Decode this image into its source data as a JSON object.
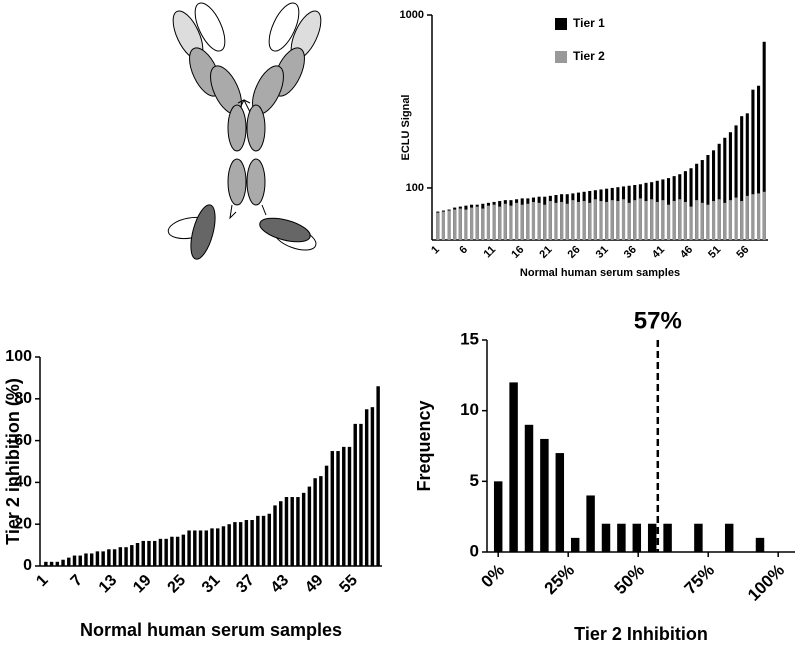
{
  "chart_data": [
    {
      "type": "bar",
      "log_scale": true,
      "y_label": "ECLU Signal",
      "x_label": "Normal human serum samples",
      "legend": "top-center",
      "categories": [
        "1",
        null,
        null,
        null,
        null,
        "6",
        null,
        null,
        null,
        null,
        "11",
        null,
        null,
        null,
        null,
        "16",
        null,
        null,
        null,
        null,
        "21",
        null,
        null,
        null,
        null,
        "26",
        null,
        null,
        null,
        null,
        "31",
        null,
        null,
        null,
        null,
        "36",
        null,
        null,
        null,
        null,
        "41",
        null,
        null,
        null,
        null,
        "46",
        null,
        null,
        null,
        null,
        "51",
        null,
        null,
        null,
        null,
        "56",
        null,
        null,
        null
      ],
      "series": [
        {
          "name": "Tier 1",
          "color": "#000000",
          "values": [
            73,
            74,
            75,
            77,
            78,
            79,
            80,
            80,
            81,
            82,
            83,
            84,
            85,
            85,
            86,
            87,
            87,
            88,
            89,
            89,
            90,
            91,
            92,
            92,
            93,
            94,
            95,
            96,
            97,
            98,
            99,
            100,
            101,
            102,
            103,
            104,
            105,
            107,
            108,
            110,
            112,
            114,
            117,
            120,
            125,
            130,
            138,
            145,
            155,
            165,
            180,
            195,
            210,
            230,
            260,
            270,
            370,
            390,
            700
          ]
        },
        {
          "name": "Tier 2",
          "color": "#999999",
          "values": [
            72,
            73,
            74,
            75,
            76,
            75,
            77,
            78,
            76,
            79,
            80,
            78,
            81,
            79,
            82,
            80,
            81,
            83,
            82,
            80,
            84,
            82,
            83,
            81,
            85,
            83,
            84,
            82,
            86,
            84,
            83,
            85,
            84,
            86,
            82,
            85,
            87,
            84,
            86,
            83,
            85,
            80,
            84,
            86,
            83,
            78,
            85,
            82,
            80,
            84,
            86,
            82,
            85,
            88,
            84,
            90,
            92,
            93,
            95
          ]
        }
      ],
      "ylim": [
        50,
        1000
      ],
      "yticks": [
        100,
        1000
      ]
    },
    {
      "type": "bar",
      "y_label": "Tier 2 inhibition (%)",
      "x_label": "Normal human serum samples",
      "color": "#000000",
      "categories": [
        "1",
        null,
        null,
        null,
        null,
        null,
        "7",
        null,
        null,
        null,
        null,
        null,
        "13",
        null,
        null,
        null,
        null,
        null,
        "19",
        null,
        null,
        null,
        null,
        null,
        "25",
        null,
        null,
        null,
        null,
        null,
        "31",
        null,
        null,
        null,
        null,
        null,
        "37",
        null,
        null,
        null,
        null,
        null,
        "43",
        null,
        null,
        null,
        null,
        null,
        "49",
        null,
        null,
        null,
        null,
        null,
        "55",
        null,
        null,
        null,
        null
      ],
      "values": [
        2,
        2,
        2,
        3,
        4,
        5,
        5,
        6,
        6,
        7,
        7,
        8,
        8,
        9,
        9,
        10,
        11,
        12,
        12,
        12,
        13,
        13,
        14,
        14,
        15,
        17,
        17,
        17,
        17,
        18,
        18,
        19,
        20,
        21,
        21,
        22,
        22,
        24,
        24,
        25,
        29,
        31,
        33,
        33,
        33,
        35,
        38,
        42,
        43,
        48,
        55,
        55,
        57,
        57,
        68,
        68,
        75,
        76,
        86
      ],
      "ylim": [
        0,
        100
      ],
      "yticks": [
        0,
        20,
        40,
        60,
        80,
        100
      ]
    },
    {
      "type": "histogram",
      "y_label": "Frequency",
      "x_label": "Tier 2 Inhibition",
      "color": "#000000",
      "bins": [
        -2.75,
        2.75,
        8.25,
        13.75,
        19.25,
        24.75,
        30.25,
        35.75,
        41.25,
        46.75,
        52.25,
        57.75,
        63.25,
        68.75,
        74.25,
        79.75,
        85.25,
        90.75,
        96.25
      ],
      "counts": [
        5,
        12,
        9,
        8,
        7,
        1,
        4,
        2,
        2,
        2,
        2,
        2,
        0,
        2,
        0,
        2,
        0,
        1
      ],
      "xlim": [
        -4,
        106
      ],
      "xticks": [
        {
          "value": 0,
          "label": "0%"
        },
        {
          "value": 25,
          "label": "25%"
        },
        {
          "value": 50,
          "label": "50%"
        },
        {
          "value": 75,
          "label": "75%"
        },
        {
          "value": 100,
          "label": "100%"
        }
      ],
      "ylim": [
        0,
        15
      ],
      "yticks": [
        0,
        5,
        10,
        15
      ],
      "annotation": {
        "x": 57,
        "text": "57%"
      }
    }
  ]
}
